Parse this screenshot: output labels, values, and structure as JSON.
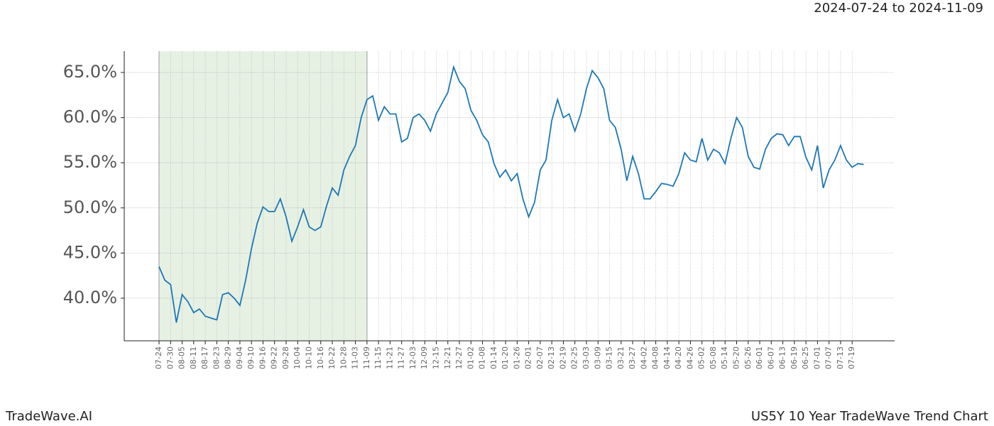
{
  "header": {
    "date_range": "2024-07-24 to 2024-11-09"
  },
  "footer": {
    "left": "TradeWave.AI",
    "right": "US5Y 10 Year TradeWave Trend Chart"
  },
  "chart_data": {
    "type": "line",
    "categories": [
      "07-24",
      null,
      "07-30",
      null,
      "08-05",
      null,
      "08-11",
      null,
      "08-17",
      null,
      "08-23",
      null,
      "08-29",
      null,
      "09-04",
      null,
      "09-10",
      null,
      "09-16",
      null,
      "09-22",
      null,
      "09-28",
      null,
      "10-04",
      null,
      "10-10",
      null,
      "10-16",
      null,
      "10-22",
      null,
      "10-28",
      null,
      "11-03",
      null,
      "11-09",
      null,
      "11-15",
      null,
      "11-21",
      null,
      "11-27",
      null,
      "12-03",
      null,
      "12-09",
      null,
      "12-15",
      null,
      "12-21",
      null,
      "12-27",
      null,
      "01-02",
      null,
      "01-08",
      null,
      "01-14",
      null,
      "01-20",
      null,
      "01-26",
      null,
      "02-01",
      null,
      "02-07",
      null,
      "02-13",
      null,
      "02-19",
      null,
      "02-25",
      null,
      "03-03",
      null,
      "03-09",
      null,
      "03-15",
      null,
      "03-21",
      null,
      "03-27",
      null,
      "04-02",
      null,
      "04-08",
      null,
      "04-14",
      null,
      "04-20",
      null,
      "04-26",
      null,
      "05-02",
      null,
      "05-08",
      null,
      "05-14",
      null,
      "05-20",
      null,
      "05-26",
      null,
      "06-01",
      null,
      "06-07",
      null,
      "06-13",
      null,
      "06-19",
      null,
      "06-25",
      null,
      "07-01",
      null,
      "07-07",
      null,
      "07-13",
      null,
      "07-19",
      null,
      null
    ],
    "series": [
      {
        "color": "#1f77b4",
        "values": [
          43.5,
          42.0,
          41.5,
          37.3,
          40.4,
          39.6,
          38.4,
          38.8,
          38.0,
          37.8,
          37.6,
          40.4,
          40.6,
          40.0,
          39.2,
          42.0,
          45.5,
          48.3,
          50.1,
          49.6,
          49.6,
          51.0,
          49.0,
          46.3,
          47.9,
          49.8,
          47.9,
          47.5,
          47.9,
          50.2,
          52.2,
          51.4,
          54.2,
          55.7,
          56.9,
          60.0,
          62.0,
          62.4,
          59.7,
          61.2,
          60.4,
          60.4,
          57.3,
          57.7,
          60.0,
          60.4,
          59.7,
          58.5,
          60.4,
          61.6,
          62.8,
          65.6,
          64.0,
          63.2,
          60.8,
          59.7,
          58.1,
          57.3,
          54.9,
          53.4,
          54.2,
          53.0,
          53.8,
          51.0,
          49.0,
          50.6,
          54.2,
          55.3,
          59.7,
          62.0,
          60.0,
          60.4,
          58.5,
          60.4,
          63.2,
          65.2,
          64.4,
          63.2,
          59.7,
          58.9,
          56.5,
          53.0,
          55.7,
          53.8,
          51.0,
          51.0,
          51.8,
          52.7,
          52.6,
          52.4,
          53.8,
          56.1,
          55.3,
          55.1,
          57.7,
          55.3,
          56.5,
          56.1,
          54.9,
          57.7,
          60.0,
          58.9,
          55.7,
          54.5,
          54.3,
          56.5,
          57.7,
          58.2,
          58.1,
          56.9,
          57.9,
          57.9,
          55.6,
          54.2,
          56.9,
          52.2,
          54.2,
          55.3,
          56.9,
          55.3,
          54.5,
          54.9,
          54.8
        ]
      }
    ],
    "ylim": [
      35.28,
      67.36
    ],
    "yticks": [
      {
        "value": 40,
        "label": "40.0%"
      },
      {
        "value": 45,
        "label": "45.0%"
      },
      {
        "value": 50,
        "label": "50.0%"
      },
      {
        "value": 55,
        "label": "55.0%"
      },
      {
        "value": 60,
        "label": "60.0%"
      },
      {
        "value": 65,
        "label": "65.0%"
      }
    ],
    "grid": true,
    "shaded_range": [
      "07-24",
      "11-09"
    ]
  }
}
